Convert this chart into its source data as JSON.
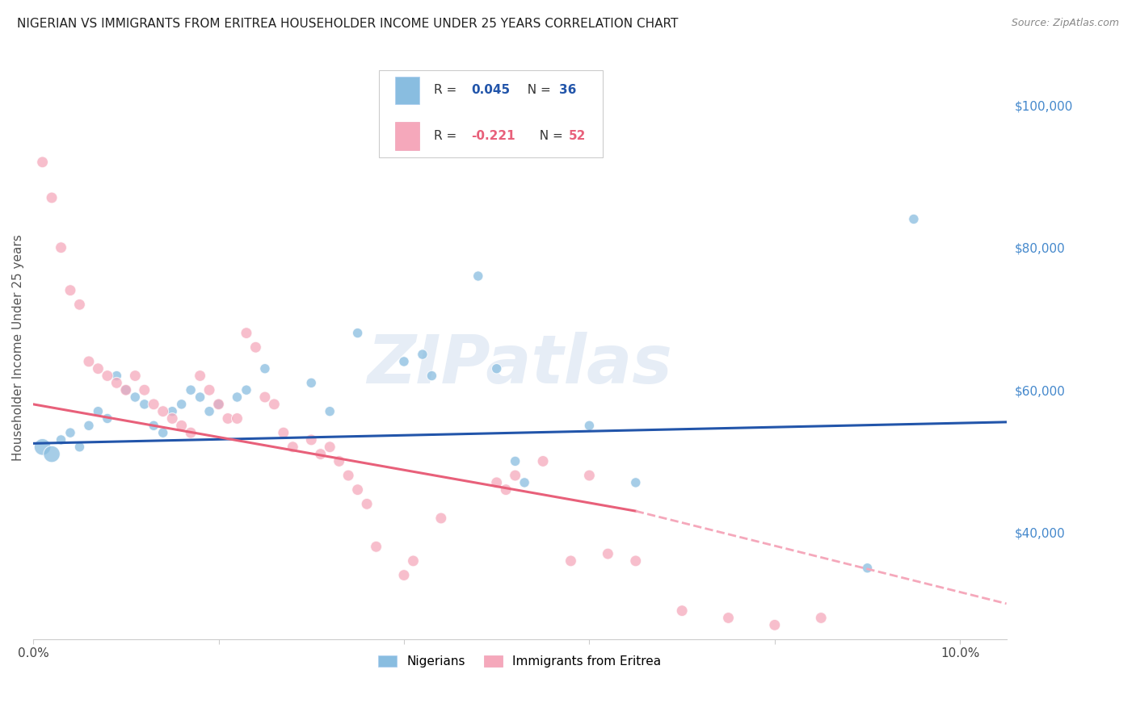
{
  "title": "NIGERIAN VS IMMIGRANTS FROM ERITREA HOUSEHOLDER INCOME UNDER 25 YEARS CORRELATION CHART",
  "source": "Source: ZipAtlas.com",
  "ylabel": "Householder Income Under 25 years",
  "xlim": [
    0.0,
    0.105
  ],
  "ylim": [
    25000,
    107000
  ],
  "grid_color": "#e8e8e8",
  "background_color": "#ffffff",
  "blue_color": "#89bde0",
  "pink_color": "#f5a8bb",
  "blue_line_color": "#2255aa",
  "pink_line_color": "#e8607a",
  "pink_dash_color": "#f5a8bb",
  "bottom_legend_blue": "Nigerians",
  "bottom_legend_pink": "Immigrants from Eritrea",
  "blue_points": [
    [
      0.001,
      52000
    ],
    [
      0.002,
      51000
    ],
    [
      0.003,
      53000
    ],
    [
      0.004,
      54000
    ],
    [
      0.005,
      52000
    ],
    [
      0.006,
      55000
    ],
    [
      0.007,
      57000
    ],
    [
      0.008,
      56000
    ],
    [
      0.009,
      62000
    ],
    [
      0.01,
      60000
    ],
    [
      0.011,
      59000
    ],
    [
      0.012,
      58000
    ],
    [
      0.013,
      55000
    ],
    [
      0.014,
      54000
    ],
    [
      0.015,
      57000
    ],
    [
      0.016,
      58000
    ],
    [
      0.017,
      60000
    ],
    [
      0.018,
      59000
    ],
    [
      0.019,
      57000
    ],
    [
      0.02,
      58000
    ],
    [
      0.022,
      59000
    ],
    [
      0.023,
      60000
    ],
    [
      0.025,
      63000
    ],
    [
      0.03,
      61000
    ],
    [
      0.032,
      57000
    ],
    [
      0.035,
      68000
    ],
    [
      0.04,
      64000
    ],
    [
      0.042,
      65000
    ],
    [
      0.043,
      62000
    ],
    [
      0.048,
      76000
    ],
    [
      0.05,
      63000
    ],
    [
      0.052,
      50000
    ],
    [
      0.053,
      47000
    ],
    [
      0.06,
      55000
    ],
    [
      0.065,
      47000
    ],
    [
      0.09,
      35000
    ],
    [
      0.095,
      84000
    ]
  ],
  "pink_points": [
    [
      0.001,
      92000
    ],
    [
      0.002,
      87000
    ],
    [
      0.003,
      80000
    ],
    [
      0.004,
      74000
    ],
    [
      0.005,
      72000
    ],
    [
      0.006,
      64000
    ],
    [
      0.007,
      63000
    ],
    [
      0.008,
      62000
    ],
    [
      0.009,
      61000
    ],
    [
      0.01,
      60000
    ],
    [
      0.011,
      62000
    ],
    [
      0.012,
      60000
    ],
    [
      0.013,
      58000
    ],
    [
      0.014,
      57000
    ],
    [
      0.015,
      56000
    ],
    [
      0.016,
      55000
    ],
    [
      0.017,
      54000
    ],
    [
      0.018,
      62000
    ],
    [
      0.019,
      60000
    ],
    [
      0.02,
      58000
    ],
    [
      0.021,
      56000
    ],
    [
      0.022,
      56000
    ],
    [
      0.023,
      68000
    ],
    [
      0.024,
      66000
    ],
    [
      0.025,
      59000
    ],
    [
      0.026,
      58000
    ],
    [
      0.027,
      54000
    ],
    [
      0.028,
      52000
    ],
    [
      0.03,
      53000
    ],
    [
      0.031,
      51000
    ],
    [
      0.032,
      52000
    ],
    [
      0.033,
      50000
    ],
    [
      0.034,
      48000
    ],
    [
      0.035,
      46000
    ],
    [
      0.036,
      44000
    ],
    [
      0.037,
      38000
    ],
    [
      0.04,
      34000
    ],
    [
      0.041,
      36000
    ],
    [
      0.044,
      42000
    ],
    [
      0.05,
      47000
    ],
    [
      0.051,
      46000
    ],
    [
      0.052,
      48000
    ],
    [
      0.055,
      50000
    ],
    [
      0.058,
      36000
    ],
    [
      0.06,
      48000
    ],
    [
      0.062,
      37000
    ],
    [
      0.065,
      36000
    ],
    [
      0.07,
      29000
    ],
    [
      0.075,
      28000
    ],
    [
      0.08,
      27000
    ],
    [
      0.085,
      28000
    ]
  ],
  "blue_trend": [
    0.0,
    0.105,
    52500,
    55500
  ],
  "pink_trend_solid": [
    0.0,
    0.065,
    58000,
    43000
  ],
  "pink_trend_dash": [
    0.065,
    0.105,
    43000,
    30000
  ]
}
